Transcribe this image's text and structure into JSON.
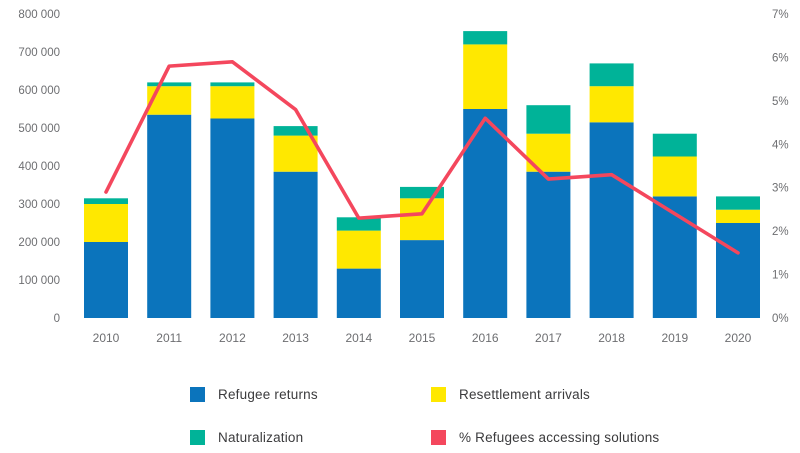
{
  "chart_data": {
    "type": "bar",
    "subtype": "stacked-bar-with-line-overlay",
    "title": "",
    "xlabel": "",
    "ylabel": "",
    "grid": false,
    "legend_position": "bottom",
    "categories": [
      "2010",
      "2011",
      "2012",
      "2013",
      "2014",
      "2015",
      "2016",
      "2017",
      "2018",
      "2019",
      "2020"
    ],
    "series": [
      {
        "name": "Refugee returns",
        "type": "bar",
        "axis": "left",
        "color": "#0b74bc",
        "values": [
          200000,
          535000,
          525000,
          385000,
          130000,
          205000,
          550000,
          385000,
          515000,
          320000,
          250000
        ]
      },
      {
        "name": "Resettlement arrivals",
        "type": "bar",
        "axis": "left",
        "color": "#ffe800",
        "values": [
          100000,
          75000,
          85000,
          95000,
          100000,
          110000,
          170000,
          100000,
          95000,
          105000,
          35000
        ]
      },
      {
        "name": "Naturalization",
        "type": "bar",
        "axis": "left",
        "color": "#00b398",
        "values": [
          15000,
          10000,
          10000,
          25000,
          35000,
          30000,
          35000,
          75000,
          60000,
          60000,
          35000
        ]
      },
      {
        "name": "% Refugees accessing solutions",
        "type": "line",
        "axis": "right",
        "color": "#f4475d",
        "values": [
          2.9,
          5.8,
          5.9,
          4.8,
          2.3,
          2.4,
          4.6,
          3.2,
          3.3,
          2.4,
          1.5
        ]
      }
    ],
    "left_axis": {
      "min": 0,
      "max": 800000,
      "step": 100000,
      "tick_labels": [
        "800 000",
        "700 000",
        "600 000",
        "500 000",
        "400 000",
        "300 000",
        "200 000",
        "100 000",
        "0"
      ]
    },
    "right_axis": {
      "min": 0,
      "max": 7,
      "step": 1,
      "tick_labels": [
        "7%",
        "6%",
        "5%",
        "4%",
        "3%",
        "2%",
        "1%",
        "0%"
      ]
    }
  },
  "colors": {
    "refugee_returns": "#0b74bc",
    "resettlement_arrivals": "#ffe800",
    "naturalization": "#00b398",
    "percent_line": "#f4475d",
    "axis_text": "#6d6e71",
    "legend_text": "#3b3b3d",
    "background": "#ffffff"
  }
}
